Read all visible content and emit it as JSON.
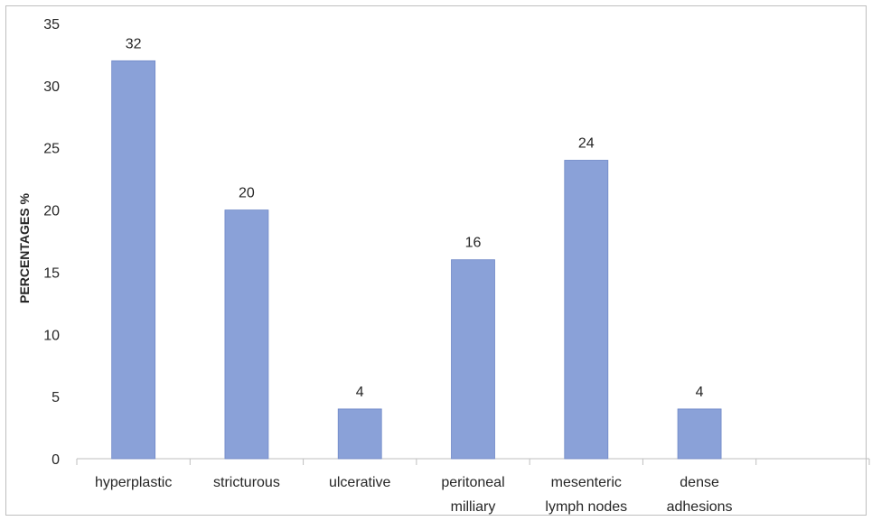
{
  "chart_data": {
    "type": "bar",
    "categories": [
      [
        "hyperplastic"
      ],
      [
        "stricturous"
      ],
      [
        "ulcerative"
      ],
      [
        "peritoneal",
        "milliary"
      ],
      [
        "mesenteric",
        "lymph nodes"
      ],
      [
        "dense",
        "adhesions"
      ],
      [
        ""
      ]
    ],
    "values": [
      32,
      20,
      4,
      16,
      24,
      4,
      null
    ],
    "data_labels": [
      "32",
      "20",
      "4",
      "16",
      "24",
      "4",
      ""
    ],
    "title": "",
    "xlabel": "",
    "ylabel": "PERCENTAGES %",
    "ylim": [
      0,
      35
    ],
    "yticks": [
      0,
      5,
      10,
      15,
      20,
      25,
      30,
      35
    ],
    "grid": false,
    "legend": "none",
    "colors": {
      "bar": "#8aa1d8",
      "bar_stroke": "#6f88c7",
      "axis": "#bfbfbf",
      "text": "#262626"
    }
  }
}
